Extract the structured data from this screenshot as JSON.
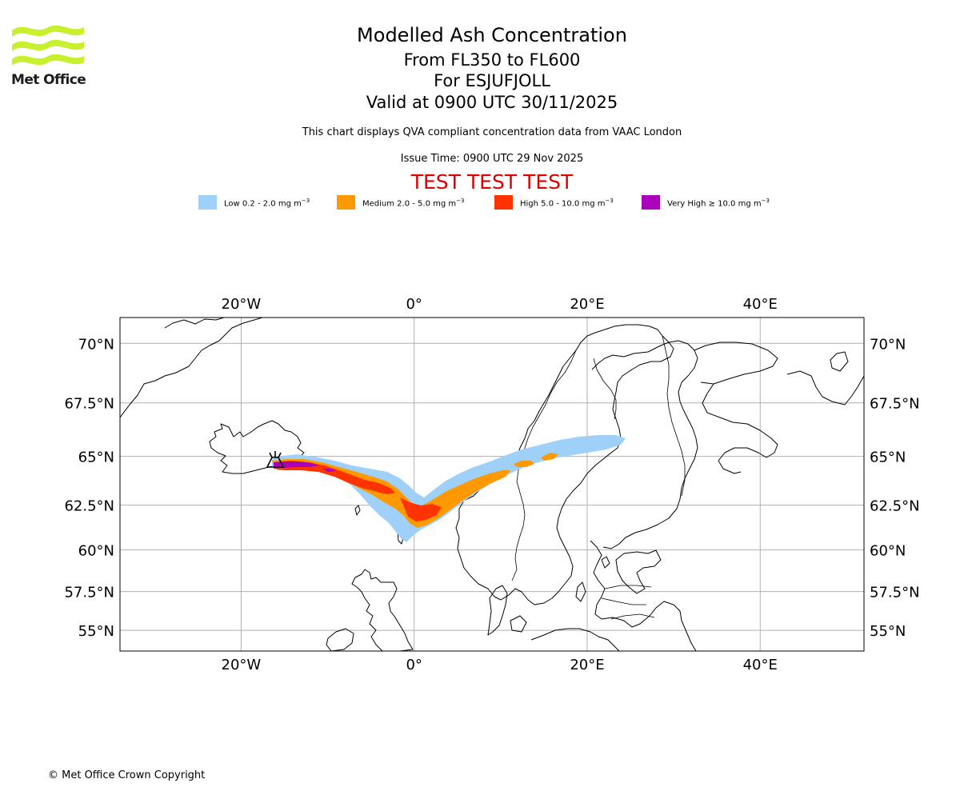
{
  "logo": {
    "text": "Met Office",
    "icon": "met-office-wave-logo",
    "color": "#c8f02d"
  },
  "header": {
    "title": "Modelled Ash Concentration",
    "levels": "From FL350 to FL600",
    "volcano": "For ESJUFJOLL",
    "valid": "Valid at 0900 UTC 30/11/2025",
    "compliance": "This chart displays QVA compliant concentration data from VAAC London",
    "issue_time": "Issue Time: 0900 UTC 29 Nov 2025",
    "test_banner": "TEST TEST TEST",
    "test_color": "#dd0000"
  },
  "legend": [
    {
      "label": "Low 0.2 - 2.0 mg m",
      "color": "#9fd0fa"
    },
    {
      "label": "Medium 2.0 - 5.0 mg m",
      "color": "#ff9900"
    },
    {
      "label": "High 5.0 - 10.0 mg m",
      "color": "#ff3300"
    },
    {
      "label": "Very High  ≥  10.0 mg m",
      "color": "#aa00bb"
    }
  ],
  "legend_unit_exponent": "−3",
  "map": {
    "lon_range": [
      -34,
      52
    ],
    "lat_range": [
      53.6,
      71.0
    ],
    "lon_ticks": [
      {
        "value": -20,
        "label": "20°W"
      },
      {
        "value": 0,
        "label": "0°"
      },
      {
        "value": 20,
        "label": "20°E"
      },
      {
        "value": 40,
        "label": "40°E"
      }
    ],
    "lat_ticks": [
      {
        "value": 70,
        "label": "70°N"
      },
      {
        "value": 67.5,
        "label": "67.5°N"
      },
      {
        "value": 65,
        "label": "65°N"
      },
      {
        "value": 62.5,
        "label": "62.5°N"
      },
      {
        "value": 60,
        "label": "60°N"
      },
      {
        "value": 57.5,
        "label": "57.5°N"
      },
      {
        "value": 55,
        "label": "55°N"
      }
    ],
    "grid": true,
    "volcano_marker": "volcano-icon"
  },
  "footer": {
    "copyright": "© Met Office Crown Copyright"
  }
}
